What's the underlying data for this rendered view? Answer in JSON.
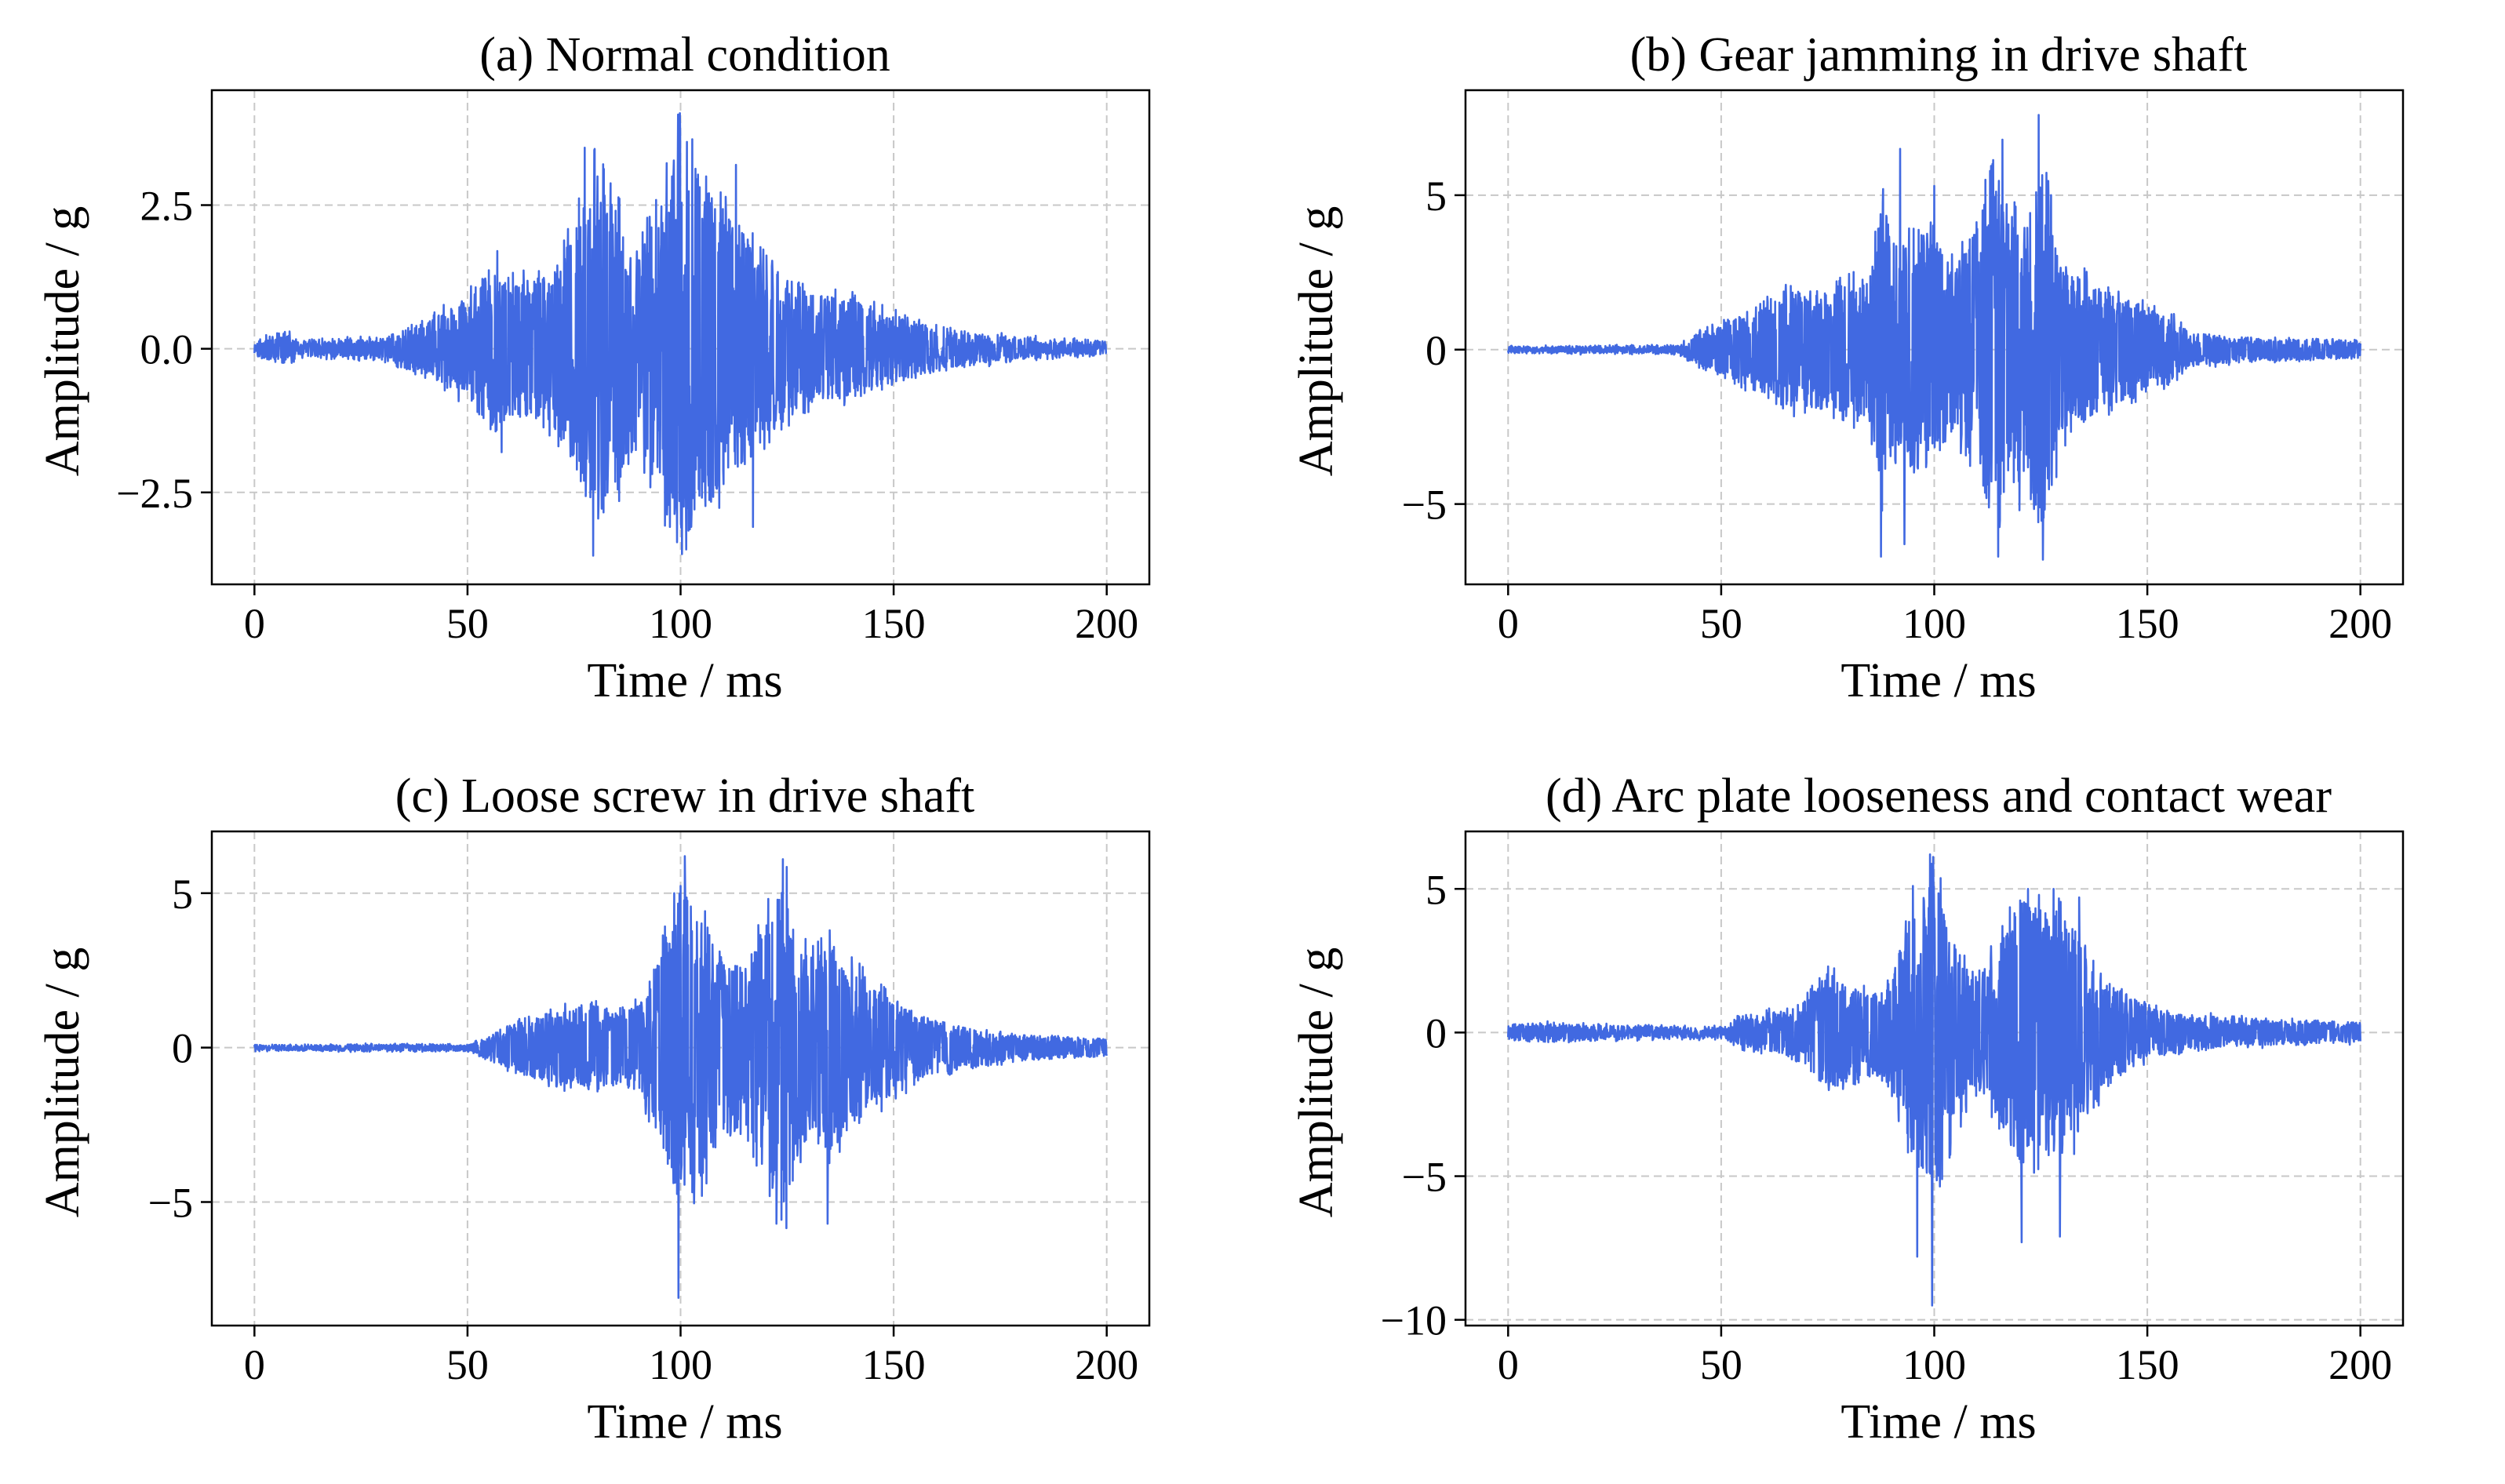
{
  "chart_data": [
    {
      "type": "line",
      "title": "(a) Normal condition",
      "xlabel": "Time / ms",
      "ylabel": "Amplitude / g",
      "xlim": [
        -10,
        210
      ],
      "ylim": [
        -4.1,
        4.5
      ],
      "xticks": [
        0,
        50,
        100,
        150,
        200
      ],
      "xtick_labels": [
        "0",
        "50",
        "100",
        "150",
        "200"
      ],
      "yticks": [
        -2.5,
        0.0,
        2.5
      ],
      "ytick_labels": [
        "−2.5",
        "0.0",
        "2.5"
      ],
      "grid": true,
      "line_color": "#4169e1",
      "series": [
        {
          "name": "Normal condition",
          "x_range": [
            0,
            200
          ],
          "baseline_noise": 0.06,
          "envelope": [
            [
              0,
              0.12
            ],
            [
              8,
              0.3
            ],
            [
              10,
              0.12
            ],
            [
              30,
              0.18
            ],
            [
              40,
              0.5
            ],
            [
              50,
              0.9
            ],
            [
              55,
              1.5
            ],
            [
              60,
              1.2
            ],
            [
              70,
              1.4
            ],
            [
              75,
              2.2
            ],
            [
              80,
              3.3
            ],
            [
              85,
              2.6
            ],
            [
              90,
              1.8
            ],
            [
              95,
              2.6
            ],
            [
              100,
              4.0
            ],
            [
              105,
              3.0
            ],
            [
              110,
              2.6
            ],
            [
              115,
              2.1
            ],
            [
              120,
              1.6
            ],
            [
              130,
              1.0
            ],
            [
              140,
              0.9
            ],
            [
              150,
              0.6
            ],
            [
              160,
              0.4
            ],
            [
              170,
              0.25
            ],
            [
              185,
              0.15
            ],
            [
              200,
              0.1
            ]
          ],
          "peaks": [
            {
              "x": 79.5,
              "y": -3.6
            },
            {
              "x": 80.5,
              "y": 3.0
            },
            {
              "x": 77.5,
              "y": 3.5
            },
            {
              "x": 99.8,
              "y": 4.1
            },
            {
              "x": 101.5,
              "y": 3.6
            },
            {
              "x": 97.5,
              "y": -3.1
            },
            {
              "x": 102.5,
              "y": -3.1
            },
            {
              "x": 106,
              "y": 3.0
            },
            {
              "x": 113,
              "y": 3.2
            },
            {
              "x": 117,
              "y": -3.1
            },
            {
              "x": 58,
              "y": -1.8
            },
            {
              "x": 57,
              "y": 1.7
            }
          ]
        }
      ]
    },
    {
      "type": "line",
      "title": "(b) Gear jamming in drive shaft",
      "xlabel": "Time / ms",
      "ylabel": "Amplitude / g",
      "xlim": [
        -10,
        210
      ],
      "ylim": [
        -7.6,
        8.4
      ],
      "xticks": [
        0,
        50,
        100,
        150,
        200
      ],
      "xtick_labels": [
        "0",
        "50",
        "100",
        "150",
        "200"
      ],
      "yticks": [
        -5,
        0,
        5
      ],
      "ytick_labels": [
        "−5",
        "0",
        "5"
      ],
      "grid": true,
      "line_color": "#4169e1",
      "series": [
        {
          "name": "Gear jamming in drive shaft",
          "x_range": [
            0,
            200
          ],
          "baseline_noise": 0.06,
          "envelope": [
            [
              0,
              0.08
            ],
            [
              40,
              0.12
            ],
            [
              45,
              0.6
            ],
            [
              55,
              1.2
            ],
            [
              60,
              1.6
            ],
            [
              65,
              2.0
            ],
            [
              75,
              2.0
            ],
            [
              85,
              2.6
            ],
            [
              88,
              5.2
            ],
            [
              90,
              3.8
            ],
            [
              95,
              4.4
            ],
            [
              100,
              3.8
            ],
            [
              105,
              2.8
            ],
            [
              110,
              4.5
            ],
            [
              115,
              6.2
            ],
            [
              120,
              4.0
            ],
            [
              125,
              6.4
            ],
            [
              130,
              3.0
            ],
            [
              135,
              2.5
            ],
            [
              140,
              2.0
            ],
            [
              150,
              1.5
            ],
            [
              155,
              1.2
            ],
            [
              160,
              0.6
            ],
            [
              170,
              0.4
            ],
            [
              200,
              0.3
            ]
          ],
          "peaks": [
            {
              "x": 87.5,
              "y": -6.7
            },
            {
              "x": 88,
              "y": 5.2
            },
            {
              "x": 92,
              "y": 6.5
            },
            {
              "x": 93,
              "y": -6.3
            },
            {
              "x": 100,
              "y": 5.3
            },
            {
              "x": 115,
              "y": -6.7
            },
            {
              "x": 116,
              "y": 6.8
            },
            {
              "x": 112,
              "y": 5.5
            },
            {
              "x": 124.5,
              "y": 7.6
            },
            {
              "x": 125.5,
              "y": -6.8
            },
            {
              "x": 120,
              "y": -5.2
            }
          ]
        }
      ]
    },
    {
      "type": "line",
      "title": "(c) Loose screw in drive shaft",
      "xlabel": "Time / ms",
      "ylabel": "Amplitude / g",
      "xlim": [
        -10,
        210
      ],
      "ylim": [
        -9.0,
        7.0
      ],
      "xticks": [
        0,
        50,
        100,
        150,
        200
      ],
      "xtick_labels": [
        "0",
        "50",
        "100",
        "150",
        "200"
      ],
      "yticks": [
        -5,
        0,
        5
      ],
      "ytick_labels": [
        "−5",
        "0",
        "5"
      ],
      "grid": true,
      "line_color": "#4169e1",
      "series": [
        {
          "name": "Loose screw in drive shaft",
          "x_range": [
            0,
            200
          ],
          "baseline_noise": 0.05,
          "envelope": [
            [
              0,
              0.08
            ],
            [
              50,
              0.1
            ],
            [
              55,
              0.4
            ],
            [
              60,
              0.8
            ],
            [
              70,
              1.2
            ],
            [
              80,
              1.6
            ],
            [
              85,
              1.2
            ],
            [
              90,
              1.5
            ],
            [
              95,
              3.0
            ],
            [
              100,
              5.6
            ],
            [
              105,
              4.4
            ],
            [
              110,
              3.2
            ],
            [
              115,
              2.6
            ],
            [
              120,
              4.4
            ],
            [
              125,
              5.6
            ],
            [
              130,
              3.0
            ],
            [
              135,
              3.6
            ],
            [
              140,
              2.8
            ],
            [
              150,
              1.6
            ],
            [
              160,
              0.9
            ],
            [
              170,
              0.6
            ],
            [
              180,
              0.4
            ],
            [
              200,
              0.3
            ]
          ],
          "peaks": [
            {
              "x": 99.5,
              "y": -8.1
            },
            {
              "x": 101,
              "y": 6.2
            },
            {
              "x": 98.5,
              "y": 5.0
            },
            {
              "x": 105,
              "y": -4.8
            },
            {
              "x": 124,
              "y": 6.1
            },
            {
              "x": 122.5,
              "y": -5.7
            },
            {
              "x": 134.5,
              "y": -5.7
            },
            {
              "x": 135,
              "y": 3.8
            }
          ]
        }
      ]
    },
    {
      "type": "line",
      "title": "(d) Arc plate looseness and contact wear",
      "xlabel": "Time / ms",
      "ylabel": "Amplitude / g",
      "xlim": [
        -10,
        210
      ],
      "ylim": [
        -10.2,
        7.0
      ],
      "xticks": [
        0,
        50,
        100,
        150,
        200
      ],
      "xtick_labels": [
        "0",
        "50",
        "100",
        "150",
        "200"
      ],
      "yticks": [
        -10,
        -5,
        0,
        5
      ],
      "ytick_labels": [
        "−10",
        "−5",
        "0",
        "5"
      ],
      "grid": true,
      "line_color": "#4169e1",
      "series": [
        {
          "name": "Arc plate looseness and contact wear",
          "x_range": [
            0,
            200
          ],
          "baseline_noise": 0.1,
          "envelope": [
            [
              0,
              0.25
            ],
            [
              3,
              0.3
            ],
            [
              50,
              0.15
            ],
            [
              55,
              0.6
            ],
            [
              65,
              0.8
            ],
            [
              70,
              1.2
            ],
            [
              75,
              2.2
            ],
            [
              80,
              1.8
            ],
            [
              85,
              1.4
            ],
            [
              90,
              2.0
            ],
            [
              95,
              4.6
            ],
            [
              100,
              5.8
            ],
            [
              105,
              3.4
            ],
            [
              110,
              2.0
            ],
            [
              115,
              3.2
            ],
            [
              120,
              4.8
            ],
            [
              125,
              4.6
            ],
            [
              130,
              4.4
            ],
            [
              135,
              3.6
            ],
            [
              140,
              2.0
            ],
            [
              150,
              1.0
            ],
            [
              160,
              0.6
            ],
            [
              170,
              0.5
            ],
            [
              200,
              0.3
            ]
          ],
          "peaks": [
            {
              "x": 99.5,
              "y": -9.5
            },
            {
              "x": 99,
              "y": 6.2
            },
            {
              "x": 96,
              "y": -7.8
            },
            {
              "x": 95,
              "y": 5.1
            },
            {
              "x": 120.5,
              "y": -7.3
            },
            {
              "x": 129.5,
              "y": -7.1
            },
            {
              "x": 122,
              "y": 5.0
            },
            {
              "x": 128,
              "y": 5.0
            },
            {
              "x": 134,
              "y": 4.7
            }
          ]
        }
      ]
    }
  ]
}
